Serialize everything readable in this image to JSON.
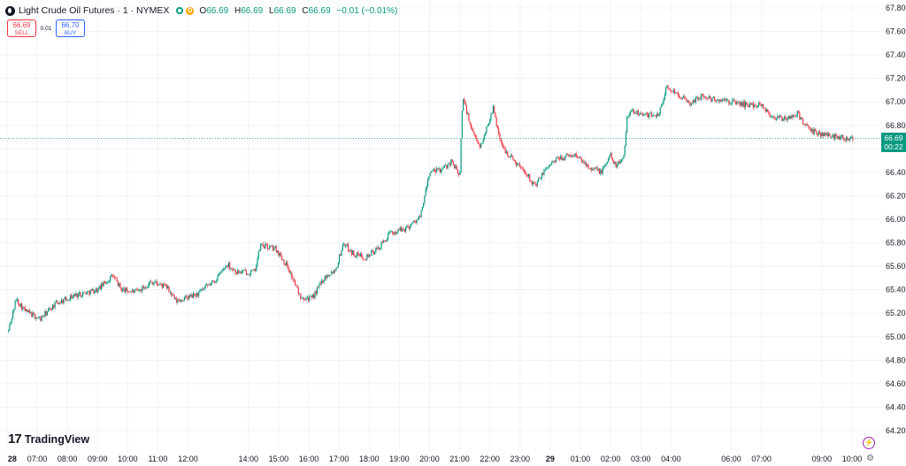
{
  "header": {
    "title": "Light Crude Oil Futures · 1 · NYMEX",
    "badge": "D",
    "ohlc": {
      "o_label": "O",
      "o_value": "66.69",
      "h_label": "H",
      "h_value": "66.69",
      "l_label": "L",
      "l_value": "66.69",
      "c_label": "C",
      "c_value": "66.69",
      "change": "−0.01 (−0.01%)"
    }
  },
  "trade": {
    "sell_price": "66.69",
    "sell_label": "SELL",
    "spread": "0.01",
    "buy_price": "66.70",
    "buy_label": "BUY"
  },
  "last_price": {
    "value": "66.69",
    "countdown": "00:22"
  },
  "branding": {
    "mark": "17",
    "text": "TradingView"
  },
  "colors": {
    "up": "#089981",
    "down": "#f23645",
    "grid": "#f0f3fa",
    "text": "#131722"
  },
  "icons": {
    "bolt": "lightning-icon",
    "settings": "gear-icon"
  },
  "chart_data": {
    "type": "candlestick",
    "symbol": "Light Crude Oil Futures",
    "interval": "1",
    "exchange": "NYMEX",
    "ylim": [
      64.1,
      67.9
    ],
    "y_ticks": [
      "67.80",
      "67.60",
      "67.40",
      "67.20",
      "67.00",
      "66.80",
      "66.60",
      "66.40",
      "66.20",
      "66.00",
      "65.80",
      "65.60",
      "65.40",
      "65.20",
      "65.00",
      "64.80",
      "64.60",
      "64.40",
      "64.20"
    ],
    "x_ticks": [
      "28",
      "07:00",
      "08:00",
      "09:00",
      "10:00",
      "11:00",
      "12:00",
      "14:00",
      "15:00",
      "16:00",
      "17:00",
      "18:00",
      "19:00",
      "20:00",
      "21:00",
      "22:00",
      "23:00",
      "29",
      "01:00",
      "02:00",
      "03:00",
      "04:00",
      "06:00",
      "07:00",
      "09:00",
      "10:00"
    ],
    "x_hours": [
      6,
      7,
      8,
      9,
      10,
      11,
      12,
      14,
      15,
      16,
      17,
      18,
      19,
      20,
      21,
      22,
      23,
      24,
      25,
      26,
      27,
      28,
      30,
      31,
      33,
      34
    ],
    "price_path": [
      {
        "t": 6.05,
        "p": 65.05
      },
      {
        "t": 6.3,
        "p": 65.32
      },
      {
        "t": 6.6,
        "p": 65.22
      },
      {
        "t": 7.1,
        "p": 65.15
      },
      {
        "t": 7.6,
        "p": 65.28
      },
      {
        "t": 8.2,
        "p": 65.35
      },
      {
        "t": 9.0,
        "p": 65.4
      },
      {
        "t": 9.5,
        "p": 65.52
      },
      {
        "t": 9.8,
        "p": 65.4
      },
      {
        "t": 10.3,
        "p": 65.38
      },
      {
        "t": 10.8,
        "p": 65.47
      },
      {
        "t": 11.3,
        "p": 65.42
      },
      {
        "t": 11.6,
        "p": 65.3
      },
      {
        "t": 12.3,
        "p": 65.36
      },
      {
        "t": 12.9,
        "p": 65.48
      },
      {
        "t": 13.3,
        "p": 65.62
      },
      {
        "t": 13.6,
        "p": 65.55
      },
      {
        "t": 14.2,
        "p": 65.55
      },
      {
        "t": 14.4,
        "p": 65.78
      },
      {
        "t": 14.9,
        "p": 65.75
      },
      {
        "t": 15.3,
        "p": 65.6
      },
      {
        "t": 15.7,
        "p": 65.35
      },
      {
        "t": 16.1,
        "p": 65.32
      },
      {
        "t": 16.5,
        "p": 65.5
      },
      {
        "t": 16.9,
        "p": 65.58
      },
      {
        "t": 17.15,
        "p": 65.8
      },
      {
        "t": 17.5,
        "p": 65.7
      },
      {
        "t": 17.9,
        "p": 65.68
      },
      {
        "t": 18.3,
        "p": 65.75
      },
      {
        "t": 18.7,
        "p": 65.88
      },
      {
        "t": 19.2,
        "p": 65.92
      },
      {
        "t": 19.7,
        "p": 66.02
      },
      {
        "t": 20.0,
        "p": 66.4
      },
      {
        "t": 20.4,
        "p": 66.42
      },
      {
        "t": 20.75,
        "p": 66.5
      },
      {
        "t": 21.0,
        "p": 66.35
      },
      {
        "t": 21.1,
        "p": 67.05
      },
      {
        "t": 21.4,
        "p": 66.75
      },
      {
        "t": 21.7,
        "p": 66.62
      },
      {
        "t": 22.1,
        "p": 66.95
      },
      {
        "t": 22.4,
        "p": 66.62
      },
      {
        "t": 22.8,
        "p": 66.5
      },
      {
        "t": 23.2,
        "p": 66.4
      },
      {
        "t": 23.5,
        "p": 66.28
      },
      {
        "t": 23.9,
        "p": 66.45
      },
      {
        "t": 24.3,
        "p": 66.52
      },
      {
        "t": 24.8,
        "p": 66.55
      },
      {
        "t": 25.3,
        "p": 66.45
      },
      {
        "t": 25.7,
        "p": 66.4
      },
      {
        "t": 26.0,
        "p": 66.55
      },
      {
        "t": 26.2,
        "p": 66.45
      },
      {
        "t": 26.45,
        "p": 66.55
      },
      {
        "t": 26.55,
        "p": 66.9
      },
      {
        "t": 26.8,
        "p": 66.92
      },
      {
        "t": 27.2,
        "p": 66.88
      },
      {
        "t": 27.6,
        "p": 66.9
      },
      {
        "t": 27.85,
        "p": 67.12
      },
      {
        "t": 28.2,
        "p": 67.08
      },
      {
        "t": 28.6,
        "p": 66.98
      },
      {
        "t": 29.0,
        "p": 67.05
      },
      {
        "t": 29.4,
        "p": 67.02
      },
      {
        "t": 30.0,
        "p": 67.0
      },
      {
        "t": 30.6,
        "p": 66.97
      },
      {
        "t": 31.0,
        "p": 66.98
      },
      {
        "t": 31.3,
        "p": 66.88
      },
      {
        "t": 31.8,
        "p": 66.85
      },
      {
        "t": 32.2,
        "p": 66.9
      },
      {
        "t": 32.6,
        "p": 66.75
      },
      {
        "t": 33.1,
        "p": 66.72
      },
      {
        "t": 33.6,
        "p": 66.7
      },
      {
        "t": 34.05,
        "p": 66.69
      }
    ],
    "last_value": 66.69,
    "grid": true,
    "price_axis": "right"
  }
}
